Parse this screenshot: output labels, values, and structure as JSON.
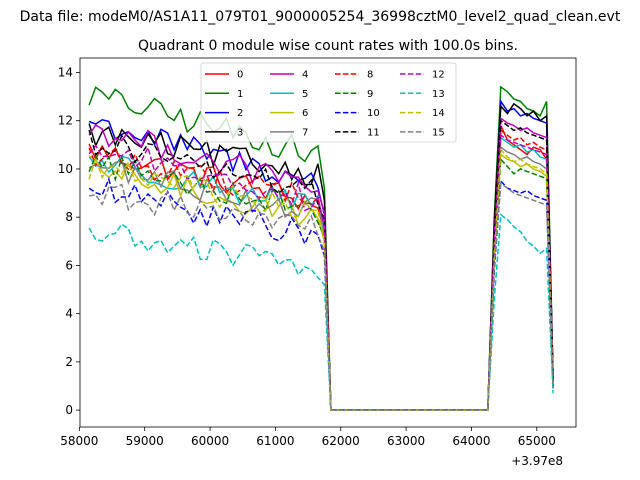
{
  "chart_data": {
    "type": "line",
    "suptitle": "Data file: modeM0/AS1A11_079T01_9000005254_36998cztM0_level2_quad_clean.evt",
    "title": "Quadrant 0 module wise count rates with 100.0s bins.",
    "xlabel": "",
    "ylabel": "",
    "x_offset_label": "+3.97e8",
    "xlim": [
      58010,
      65600
    ],
    "ylim": [
      -0.7,
      14.6
    ],
    "xticks": [
      58000,
      59000,
      60000,
      61000,
      62000,
      63000,
      64000,
      65000
    ],
    "yticks": [
      0,
      2,
      4,
      6,
      8,
      10,
      12,
      14
    ],
    "legend_placement": "upper-center",
    "legend_columns": 4,
    "grid": false,
    "segment1": {
      "start": 58150,
      "end": 61750,
      "step": 100
    },
    "gap": {
      "start": 61850,
      "end": 64250,
      "value": 0
    },
    "segment2": {
      "start": 64350,
      "end": 65250,
      "step": 100
    },
    "series": [
      {
        "name": "0",
        "color": "#ff0000",
        "dash": "solid",
        "seg1_level": [
          10.8,
          8.6
        ],
        "seg1_end": 7.4,
        "seg2": [
          6.3,
          11.8,
          11.2,
          11.0,
          10.8,
          10.6,
          10.9,
          10.8,
          10.4,
          1.1
        ]
      },
      {
        "name": "1",
        "color": "#008000",
        "dash": "solid",
        "seg1_level": [
          13.1,
          10.6
        ],
        "seg1_end": 9.2,
        "seg2": [
          8.0,
          13.4,
          13.2,
          12.9,
          12.8,
          12.5,
          12.4,
          12.2,
          12.8,
          1.4
        ]
      },
      {
        "name": "2",
        "color": "#0000ff",
        "dash": "solid",
        "seg1_level": [
          12.0,
          9.4
        ],
        "seg1_end": 8.1,
        "seg2": [
          7.5,
          12.8,
          12.4,
          12.5,
          12.2,
          12.3,
          12.1,
          12.0,
          11.9,
          1.3
        ]
      },
      {
        "name": "3",
        "color": "#000000",
        "dash": "solid",
        "seg1_level": [
          11.5,
          9.8
        ],
        "seg1_end": 8.7,
        "seg2": [
          7.8,
          12.6,
          12.3,
          12.7,
          12.5,
          12.2,
          12.4,
          12.0,
          12.2,
          1.3
        ]
      },
      {
        "name": "4",
        "color": "#bf00bf",
        "dash": "solid",
        "seg1_level": [
          11.7,
          9.2
        ],
        "seg1_end": 8.2,
        "seg2": [
          7.2,
          12.1,
          11.9,
          11.8,
          11.6,
          11.7,
          11.5,
          11.4,
          11.3,
          1.2
        ]
      },
      {
        "name": "5",
        "color": "#00bfbf",
        "dash": "solid",
        "seg1_level": [
          10.4,
          8.4
        ],
        "seg1_end": 7.4,
        "seg2": [
          6.8,
          11.3,
          11.1,
          10.9,
          11.0,
          10.7,
          10.8,
          10.5,
          10.4,
          1.1
        ]
      },
      {
        "name": "6",
        "color": "#bfbf00",
        "dash": "solid",
        "seg1_level": [
          10.0,
          8.0
        ],
        "seg1_end": 7.0,
        "seg2": [
          6.4,
          10.6,
          10.4,
          10.3,
          10.1,
          10.2,
          10.0,
          9.9,
          9.7,
          1.0
        ]
      },
      {
        "name": "7",
        "color": "#808080",
        "dash": "solid",
        "seg1_level": [
          10.2,
          8.2
        ],
        "seg1_end": 7.1,
        "seg2": [
          6.6,
          10.9,
          10.7,
          10.6,
          10.4,
          10.5,
          10.3,
          10.2,
          10.0,
          1.0
        ]
      },
      {
        "name": "8",
        "color": "#ff0000",
        "dash": "dashed",
        "seg1_level": [
          10.6,
          8.8
        ],
        "seg1_end": 7.6,
        "seg2": [
          6.9,
          11.6,
          11.4,
          11.2,
          11.3,
          11.0,
          11.1,
          10.9,
          10.8,
          1.1
        ]
      },
      {
        "name": "9",
        "color": "#008000",
        "dash": "dashed",
        "seg1_level": [
          10.3,
          8.3
        ],
        "seg1_end": 7.2,
        "seg2": [
          6.5,
          10.4,
          10.1,
          9.8,
          10.0,
          9.9,
          9.8,
          9.7,
          9.6,
          1.0
        ]
      },
      {
        "name": "10",
        "color": "#0000ff",
        "dash": "dashed",
        "seg1_level": [
          9.2,
          7.2
        ],
        "seg1_end": 6.4,
        "seg2": [
          5.8,
          9.5,
          9.2,
          9.1,
          9.0,
          9.1,
          8.9,
          8.8,
          8.7,
          0.9
        ]
      },
      {
        "name": "11",
        "color": "#000000",
        "dash": "dashed",
        "seg1_level": [
          11.2,
          9.0
        ],
        "seg1_end": 7.9,
        "seg2": [
          7.1,
          12.0,
          11.8,
          11.6,
          11.7,
          11.5,
          11.4,
          11.3,
          11.2,
          1.2
        ]
      },
      {
        "name": "12",
        "color": "#bf00bf",
        "dash": "dashed",
        "seg1_level": [
          10.9,
          8.7
        ],
        "seg1_end": 7.6,
        "seg2": [
          7.0,
          11.4,
          11.2,
          11.1,
          11.0,
          10.9,
          10.8,
          10.7,
          10.6,
          1.1
        ]
      },
      {
        "name": "13",
        "color": "#00bfbf",
        "dash": "dashed",
        "seg1_level": [
          7.4,
          5.9
        ],
        "seg1_end": 5.2,
        "seg2": [
          4.6,
          8.1,
          7.9,
          7.6,
          7.4,
          7.0,
          6.8,
          6.5,
          6.7,
          0.7
        ]
      },
      {
        "name": "14",
        "color": "#bfbf00",
        "dash": "dashed",
        "seg1_level": [
          10.1,
          8.1
        ],
        "seg1_end": 7.0,
        "seg2": [
          6.3,
          10.8,
          10.5,
          10.3,
          10.4,
          10.2,
          10.1,
          10.0,
          9.8,
          1.0
        ]
      },
      {
        "name": "15",
        "color": "#808080",
        "dash": "dashed",
        "seg1_level": [
          9.0,
          7.6
        ],
        "seg1_end": 6.6,
        "seg2": [
          6.0,
          9.4,
          9.2,
          9.0,
          8.9,
          8.8,
          8.7,
          8.6,
          8.5,
          0.9
        ]
      }
    ]
  }
}
